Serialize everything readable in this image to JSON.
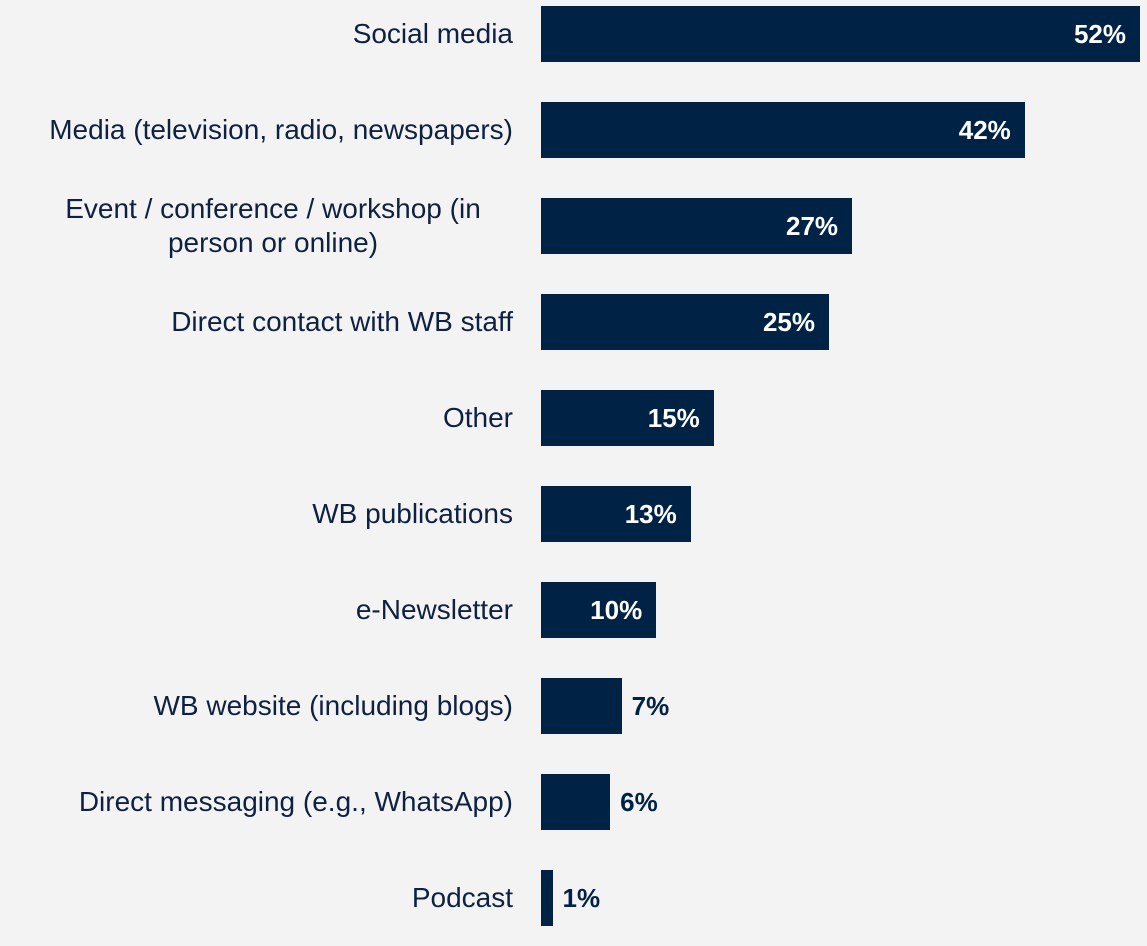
{
  "chart_data": {
    "type": "bar",
    "orientation": "horizontal",
    "categories": [
      "Social media",
      "Media (television, radio, newspapers)",
      "Event / conference / workshop (in person or online)",
      "Direct contact with WB staff",
      "Other",
      "WB publications",
      "e-Newsletter",
      "WB website (including blogs)",
      "Direct messaging (e.g., WhatsApp)",
      "Podcast"
    ],
    "values": [
      52,
      42,
      27,
      25,
      15,
      13,
      10,
      7,
      6,
      1
    ],
    "value_labels": [
      "52%",
      "42%",
      "27%",
      "25%",
      "15%",
      "13%",
      "10%",
      "7%",
      "6%",
      "1%"
    ],
    "color": "#002244"
  }
}
